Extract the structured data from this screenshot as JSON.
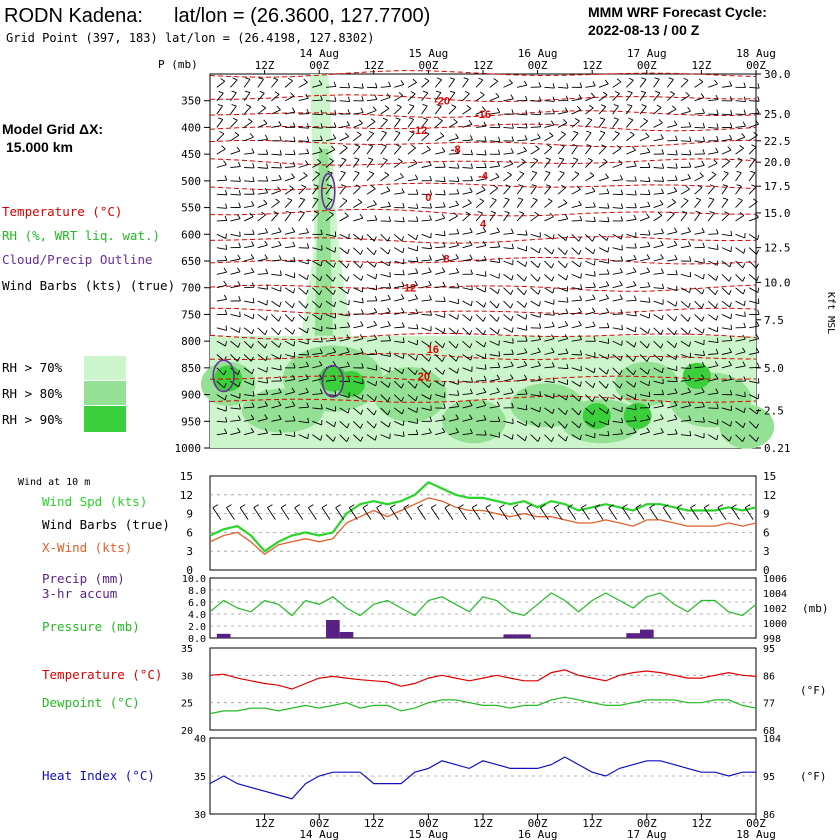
{
  "header": {
    "station": "RODN Kadena:",
    "station_latlon": "lat/lon = (26.3600, 127.7700)",
    "grid_point": "Grid Point (397, 183) lat/lon = (26.4198, 127.8302)",
    "cycle_line1": "MMM WRF Forecast Cycle:",
    "cycle_line2": "2022-08-13 / 00  Z"
  },
  "model_grid": {
    "label": "Model Grid ΔX:",
    "value": "15.000 km"
  },
  "legend_upper": {
    "temperature": "Temperature (°C)",
    "rh": "RH (%, WRT liq. wat.)",
    "cloud": "Cloud/Precip Outline",
    "wind": "Wind Barbs (kts) (true)",
    "rh70": "RH > 70%",
    "rh80": "RH > 80%",
    "rh90": "RH > 90%"
  },
  "colors": {
    "temperature": "#dd0000",
    "rh": "#22bb22",
    "cloud": "#6a2c9a",
    "xwind": "#e0602a",
    "windspd": "#2ad42a",
    "heat": "#1010c0",
    "rh70": "#ccf5cc",
    "rh80": "#94e094",
    "rh90": "#3ccf3c",
    "precip": "#5a1f84"
  },
  "time_axis": {
    "hour_labels": [
      "12Z",
      "00Z",
      "12Z",
      "00Z",
      "12Z",
      "00Z",
      "12Z",
      "00Z",
      "12Z",
      "00Z"
    ],
    "hour_values": [
      12,
      24,
      36,
      48,
      60,
      72,
      84,
      96,
      108,
      120
    ],
    "day_labels": [
      "14 Aug",
      "15 Aug",
      "16 Aug",
      "17 Aug",
      "18 Aug"
    ],
    "day_values": [
      24,
      48,
      72,
      96,
      120
    ],
    "range": [
      0,
      120
    ]
  },
  "upper_panel": {
    "pressure_axis_title": "P (mb)",
    "right_axis_title": "Kft MSL",
    "pressure_levels": [
      350,
      400,
      450,
      500,
      550,
      600,
      650,
      700,
      750,
      800,
      850,
      900,
      950,
      1000
    ],
    "kft_labels": [
      "30.0",
      "25.0",
      "22.5",
      "20.0",
      "17.5",
      "15.0",
      "12.5",
      "10.0",
      "7.5",
      "5.0",
      "2.5",
      "0.21"
    ],
    "kft_at_pressure": [
      300,
      375,
      425,
      465,
      510,
      560,
      625,
      690,
      760,
      850,
      930,
      1000
    ]
  },
  "wind10_panel": {
    "title": "Wind at 10 m",
    "label_spd": "Wind Spd (kts)",
    "label_barbs": "Wind Barbs (true)",
    "label_xwind": "X-Wind (kts)",
    "yticks": [
      3,
      6,
      9,
      12,
      15
    ],
    "ytick_labels": [
      "3",
      "6",
      "9",
      "12",
      "15"
    ],
    "ylim": [
      0,
      15
    ]
  },
  "precip_panel": {
    "label_precip": "Precip (mm)",
    "label_precip2": "3-hr accum",
    "label_pressure": "Pressure (mb)",
    "left_ticks": [
      "0.0",
      "2.0",
      "4.0",
      "6.0",
      "8.0",
      "10.0"
    ],
    "right_ticks": [
      "998",
      "1000",
      "1002",
      "1004",
      "1006"
    ],
    "right_unit": "(mb)"
  },
  "temp_panel": {
    "label_temp": "Temperature (°C)",
    "label_dew": "Dewpoint (°C)",
    "left_ticks": [
      "20",
      "25",
      "30",
      "35"
    ],
    "right_ticks": [
      "68",
      "77",
      "86",
      "95"
    ],
    "right_unit": "(°F)"
  },
  "heat_panel": {
    "label": "Heat Index (°C)",
    "left_ticks": [
      "30",
      "35",
      "40"
    ],
    "right_ticks": [
      "86",
      "95",
      "104"
    ],
    "right_unit": "(°F)"
  },
  "chart_data": [
    {
      "type": "line",
      "panel": "upper-air-temperature",
      "x_unit": "forecast hours from 2022-08-13 00Z",
      "contour_labels": [
        {
          "value": "-20",
          "x": 51,
          "p": 350
        },
        {
          "value": "-16",
          "x": 60,
          "p": 375
        },
        {
          "value": "-12",
          "x": 46,
          "p": 405
        },
        {
          "value": "-8",
          "x": 54,
          "p": 440
        },
        {
          "value": "-4",
          "x": 60,
          "p": 490
        },
        {
          "value": "0",
          "x": 48,
          "p": 530
        },
        {
          "value": "4",
          "x": 60,
          "p": 580
        },
        {
          "value": "8",
          "x": 52,
          "p": 645
        },
        {
          "value": "12",
          "x": 44,
          "p": 700
        },
        {
          "value": "16",
          "x": 49,
          "p": 815
        },
        {
          "value": "20",
          "x": 47,
          "p": 865
        }
      ],
      "isotherm_pressures": [
        300,
        345,
        375,
        400,
        430,
        465,
        510,
        560,
        610,
        650,
        700,
        745,
        790,
        830,
        870,
        910
      ]
    },
    {
      "type": "line",
      "title": "Wind at 10 m",
      "x": [
        0,
        3,
        6,
        9,
        12,
        15,
        18,
        21,
        24,
        27,
        30,
        33,
        36,
        39,
        42,
        45,
        48,
        51,
        54,
        57,
        60,
        63,
        66,
        69,
        72,
        75,
        78,
        81,
        84,
        87,
        90,
        93,
        96,
        99,
        102,
        105,
        108,
        111,
        114,
        117,
        120
      ],
      "series": [
        {
          "name": "Wind Spd (kts)",
          "values": [
            5.5,
            6.5,
            7.0,
            5.5,
            3.0,
            4.5,
            5.5,
            6.0,
            5.5,
            6.0,
            9.0,
            10.5,
            11.0,
            10.5,
            11.0,
            12.0,
            14.0,
            13.0,
            12.0,
            11.5,
            11.5,
            11.0,
            10.5,
            11.0,
            10.0,
            11.0,
            10.5,
            9.5,
            10.0,
            10.5,
            10.0,
            9.5,
            10.5,
            10.5,
            10.0,
            9.5,
            9.5,
            9.5,
            10.0,
            9.5,
            10.0
          ]
        },
        {
          "name": "X-Wind (kts)",
          "values": [
            4.5,
            5.5,
            6.0,
            4.5,
            2.5,
            4.0,
            4.5,
            5.0,
            4.5,
            5.0,
            7.5,
            8.5,
            9.5,
            8.5,
            9.5,
            10.5,
            11.5,
            11.0,
            10.0,
            9.5,
            9.5,
            9.0,
            8.5,
            9.0,
            8.5,
            8.5,
            8.0,
            7.5,
            7.5,
            8.0,
            7.5,
            7.0,
            8.0,
            8.0,
            7.5,
            7.0,
            7.0,
            7.0,
            7.5,
            7.0,
            7.5
          ]
        }
      ],
      "ylim": [
        0,
        15
      ]
    },
    {
      "type": "bar",
      "title": "Precip (mm) 3-hr accum",
      "bars": [
        {
          "x": 3,
          "value": 0.7
        },
        {
          "x": 27,
          "value": 3.0
        },
        {
          "x": 30,
          "value": 1.0
        },
        {
          "x": 66,
          "value": 0.6
        },
        {
          "x": 69,
          "value": 0.6
        },
        {
          "x": 93,
          "value": 0.8
        },
        {
          "x": 96,
          "value": 1.4
        }
      ],
      "ylim": [
        0,
        10
      ]
    },
    {
      "type": "line",
      "title": "Pressure (mb)",
      "x": [
        0,
        3,
        6,
        9,
        12,
        15,
        18,
        21,
        24,
        27,
        30,
        33,
        36,
        39,
        42,
        45,
        48,
        51,
        54,
        57,
        60,
        63,
        66,
        69,
        72,
        75,
        78,
        81,
        84,
        87,
        90,
        93,
        96,
        99,
        102,
        105,
        108,
        111,
        114,
        117,
        120
      ],
      "series": [
        {
          "name": "Pressure (mb)",
          "values": [
            1001.5,
            1003.0,
            1002.0,
            1001.5,
            1003.0,
            1002.5,
            1001.0,
            1003.0,
            1002.5,
            1003.5,
            1002.0,
            1001.0,
            1002.5,
            1003.0,
            1002.0,
            1001.0,
            1003.0,
            1003.5,
            1002.5,
            1001.5,
            1003.5,
            1003.0,
            1001.5,
            1001.0,
            1002.5,
            1004.0,
            1003.0,
            1001.5,
            1003.0,
            1004.0,
            1003.0,
            1002.0,
            1003.5,
            1004.0,
            1002.5,
            1001.5,
            1003.0,
            1003.0,
            1001.5,
            1001.0,
            1002.5
          ]
        }
      ],
      "ylim": [
        998,
        1006
      ]
    },
    {
      "type": "line",
      "title": "Temperature / Dewpoint",
      "x": [
        0,
        3,
        6,
        9,
        12,
        15,
        18,
        21,
        24,
        27,
        30,
        33,
        36,
        39,
        42,
        45,
        48,
        51,
        54,
        57,
        60,
        63,
        66,
        69,
        72,
        75,
        78,
        81,
        84,
        87,
        90,
        93,
        96,
        99,
        102,
        105,
        108,
        111,
        114,
        117,
        120
      ],
      "series": [
        {
          "name": "Temperature (°C)",
          "values": [
            30.0,
            30.2,
            29.5,
            29.0,
            28.5,
            28.2,
            27.5,
            28.5,
            29.5,
            29.8,
            29.5,
            29.2,
            29.0,
            28.8,
            28.0,
            28.5,
            29.5,
            30.0,
            29.5,
            29.0,
            29.5,
            30.0,
            29.5,
            29.0,
            29.0,
            30.5,
            31.0,
            30.0,
            29.5,
            29.0,
            30.0,
            30.5,
            30.8,
            30.5,
            30.0,
            29.5,
            29.5,
            30.0,
            30.5,
            30.0,
            29.8
          ]
        },
        {
          "name": "Dewpoint (°C)",
          "values": [
            23.0,
            23.5,
            23.5,
            24.0,
            24.0,
            23.5,
            24.0,
            24.5,
            24.0,
            24.5,
            25.0,
            24.0,
            24.5,
            24.5,
            23.5,
            24.0,
            25.0,
            25.5,
            25.5,
            25.0,
            24.5,
            24.5,
            24.0,
            24.5,
            24.5,
            25.5,
            26.0,
            25.5,
            25.0,
            24.5,
            24.5,
            25.0,
            25.5,
            25.5,
            25.5,
            25.0,
            25.0,
            25.5,
            25.5,
            24.5,
            24.0
          ]
        }
      ],
      "ylim": [
        20,
        35
      ]
    },
    {
      "type": "line",
      "title": "Heat Index (°C)",
      "x": [
        0,
        3,
        6,
        9,
        12,
        15,
        18,
        21,
        24,
        27,
        30,
        33,
        36,
        39,
        42,
        45,
        48,
        51,
        54,
        57,
        60,
        63,
        66,
        69,
        72,
        75,
        78,
        81,
        84,
        87,
        90,
        93,
        96,
        99,
        102,
        105,
        108,
        111,
        114,
        117,
        120
      ],
      "series": [
        {
          "name": "Heat Index (°C)",
          "values": [
            34.0,
            35.0,
            34.0,
            33.5,
            33.0,
            32.5,
            32.0,
            34.0,
            35.0,
            35.5,
            35.5,
            35.5,
            34.0,
            34.0,
            34.0,
            35.5,
            36.0,
            37.0,
            36.5,
            36.0,
            37.0,
            36.5,
            36.0,
            36.0,
            36.0,
            36.5,
            37.5,
            36.5,
            35.5,
            35.0,
            36.0,
            36.5,
            37.0,
            37.0,
            36.5,
            36.0,
            35.5,
            35.5,
            35.0,
            35.5,
            35.5
          ]
        }
      ],
      "ylim": [
        30,
        40
      ]
    }
  ]
}
